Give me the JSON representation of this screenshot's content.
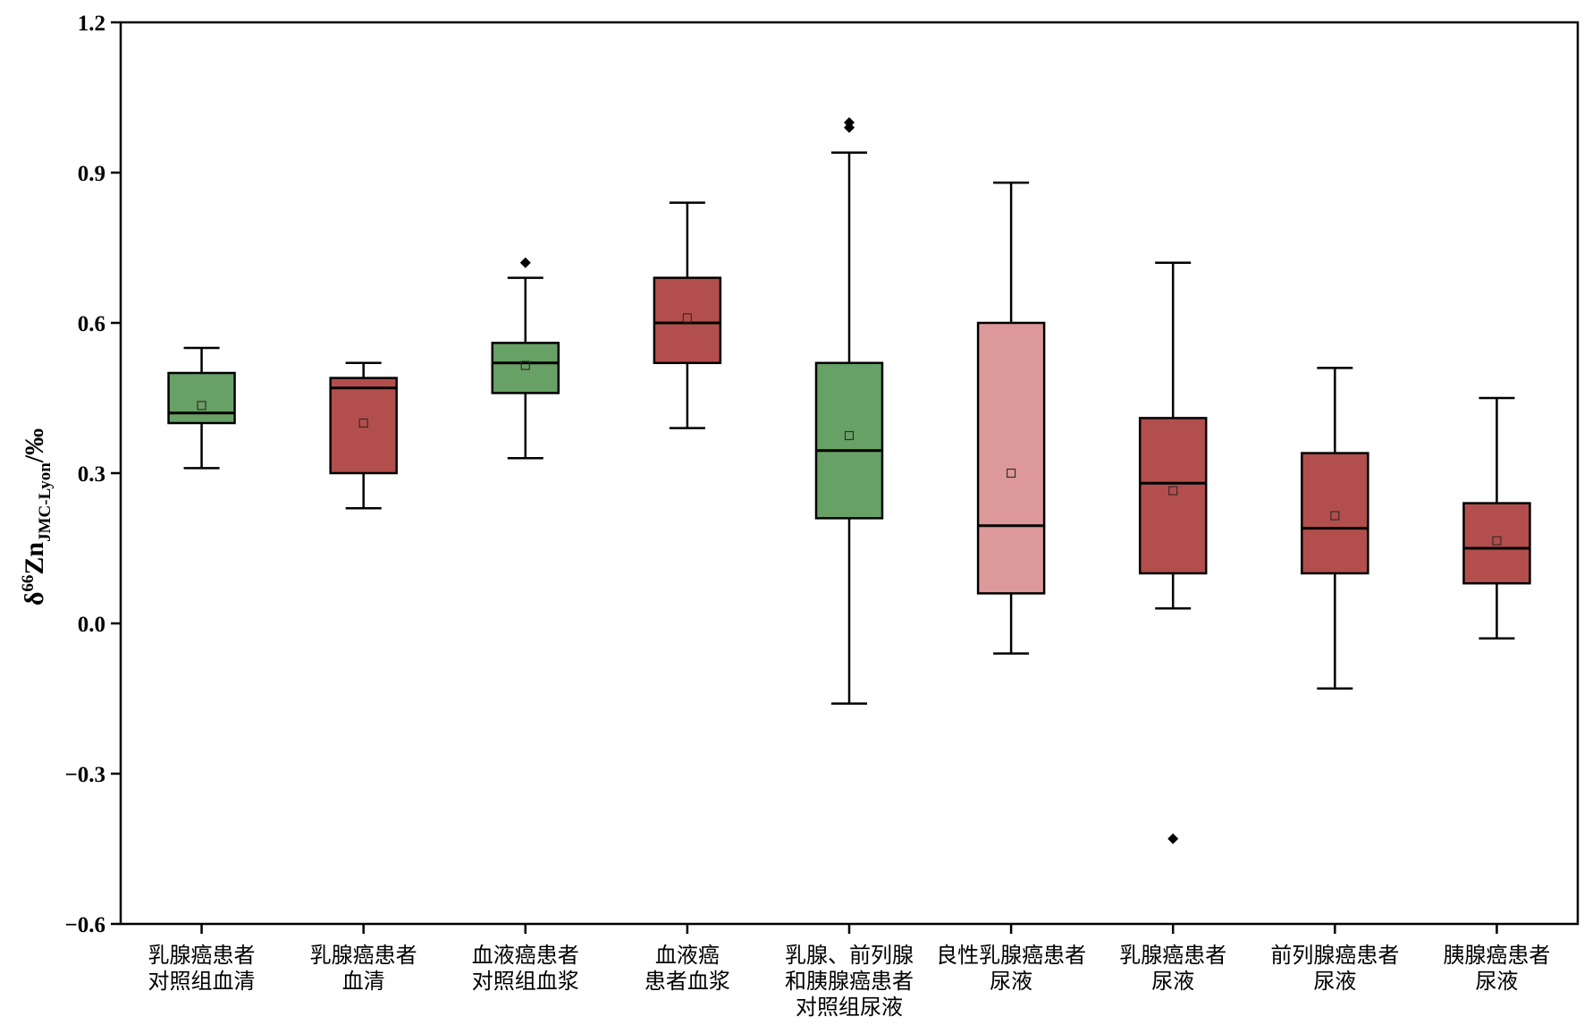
{
  "chart_data": {
    "type": "box",
    "ylabel": {
      "main": "δ",
      "sup": "66",
      "element": "Zn",
      "sub": "JMC-Lyon",
      "unit": "/‰"
    },
    "ylim": [
      -0.6,
      1.2
    ],
    "yticks": [
      "−0.6",
      "−0.3",
      "0.0",
      "0.3",
      "0.6",
      "0.9",
      "1.2"
    ],
    "ytick_values": [
      -0.6,
      -0.3,
      0.0,
      0.3,
      0.6,
      0.9,
      1.2
    ],
    "grid": false,
    "colors": {
      "control": "#68a166",
      "patient": "#b24f4c",
      "benign": "#dd999a",
      "outline": "#000000"
    },
    "categories": [
      {
        "lines": [
          "乳腺癌患者",
          "对照组血清"
        ],
        "group": "control",
        "whisker_low": 0.31,
        "q1": 0.4,
        "median": 0.42,
        "q3": 0.5,
        "whisker_high": 0.55,
        "mean": 0.435,
        "outliers": []
      },
      {
        "lines": [
          "乳腺癌患者",
          "血清"
        ],
        "group": "patient",
        "whisker_low": 0.23,
        "q1": 0.3,
        "median": 0.47,
        "q3": 0.49,
        "whisker_high": 0.52,
        "mean": 0.4,
        "outliers": []
      },
      {
        "lines": [
          "血液癌患者",
          "对照组血浆"
        ],
        "group": "control",
        "whisker_low": 0.33,
        "q1": 0.46,
        "median": 0.52,
        "q3": 0.56,
        "whisker_high": 0.69,
        "mean": 0.515,
        "outliers": [
          0.72
        ]
      },
      {
        "lines": [
          "血液癌",
          "患者血浆"
        ],
        "group": "patient",
        "whisker_low": 0.39,
        "q1": 0.52,
        "median": 0.6,
        "q3": 0.69,
        "whisker_high": 0.84,
        "mean": 0.61,
        "outliers": []
      },
      {
        "lines": [
          "乳腺、前列腺",
          "和胰腺癌患者",
          "对照组尿液"
        ],
        "group": "control",
        "whisker_low": -0.16,
        "q1": 0.21,
        "median": 0.345,
        "q3": 0.52,
        "whisker_high": 0.94,
        "mean": 0.375,
        "outliers": [
          0.99,
          1.0
        ]
      },
      {
        "lines": [
          "良性乳腺癌患者",
          "尿液"
        ],
        "group": "benign",
        "whisker_low": -0.06,
        "q1": 0.06,
        "median": 0.195,
        "q3": 0.6,
        "whisker_high": 0.88,
        "mean": 0.3,
        "outliers": []
      },
      {
        "lines": [
          "乳腺癌患者",
          "尿液"
        ],
        "group": "patient",
        "whisker_low": 0.03,
        "q1": 0.1,
        "median": 0.28,
        "q3": 0.41,
        "whisker_high": 0.72,
        "mean": 0.265,
        "outliers": [
          -0.43
        ]
      },
      {
        "lines": [
          "前列腺癌患者",
          "尿液"
        ],
        "group": "patient",
        "whisker_low": -0.13,
        "q1": 0.1,
        "median": 0.19,
        "q3": 0.34,
        "whisker_high": 0.51,
        "mean": 0.215,
        "outliers": []
      },
      {
        "lines": [
          "胰腺癌患者",
          "尿液"
        ],
        "group": "patient",
        "whisker_low": -0.03,
        "q1": 0.08,
        "median": 0.15,
        "q3": 0.24,
        "whisker_high": 0.45,
        "mean": 0.165,
        "outliers": []
      }
    ]
  }
}
